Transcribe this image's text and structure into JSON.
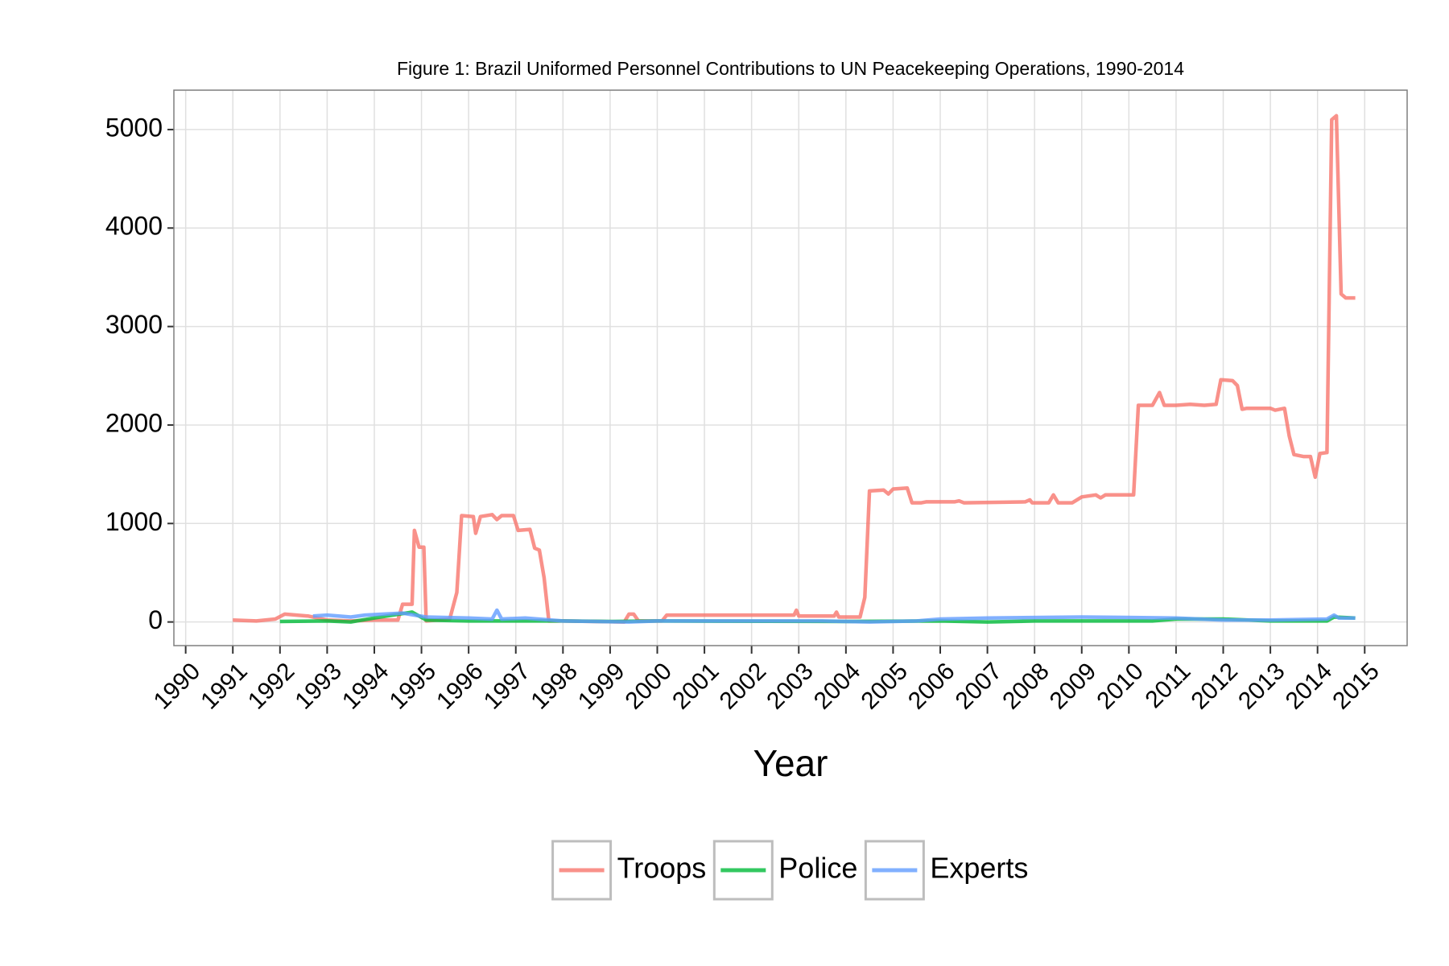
{
  "chart_data": {
    "type": "line",
    "title": "Figure 1: Brazil Uniformed Personnel Contributions to UN Peacekeeping Operations, 1990-2014",
    "x_label": "Year",
    "xlim": [
      1989.75,
      2015.9
    ],
    "xticks": [
      1990,
      1991,
      1992,
      1993,
      1994,
      1995,
      1996,
      1997,
      1998,
      1999,
      2000,
      2001,
      2002,
      2003,
      2004,
      2005,
      2006,
      2007,
      2008,
      2009,
      2010,
      2011,
      2012,
      2013,
      2014,
      2015
    ],
    "ylim": [
      -240,
      5400
    ],
    "yticks": [
      0,
      1000,
      2000,
      3000,
      4000,
      5000
    ],
    "grid": true,
    "legend": "bottom",
    "series": [
      {
        "name": "Troops",
        "color": "#f8766d",
        "x": [
          1991.0,
          1991.5,
          1991.9,
          1992.1,
          1992.6,
          1993.0,
          1993.5,
          1994.0,
          1994.5,
          1994.6,
          1994.8,
          1994.85,
          1994.95,
          1995.05,
          1995.1,
          1995.6,
          1995.75,
          1995.85,
          1996.1,
          1996.15,
          1996.25,
          1996.5,
          1996.6,
          1996.7,
          1996.95,
          1997.05,
          1997.3,
          1997.4,
          1997.5,
          1997.6,
          1997.7,
          1998.0,
          1999.3,
          1999.4,
          1999.5,
          1999.6,
          2000.1,
          2000.2,
          2002.9,
          2002.95,
          2003.0,
          2003.75,
          2003.8,
          2003.85,
          2004.3,
          2004.4,
          2004.5,
          2004.8,
          2004.9,
          2005.0,
          2005.3,
          2005.4,
          2005.6,
          2005.7,
          2006.3,
          2006.4,
          2006.5,
          2007.8,
          2007.9,
          2007.95,
          2008.3,
          2008.4,
          2008.5,
          2008.8,
          2009.0,
          2009.3,
          2009.4,
          2009.5,
          2010.1,
          2010.2,
          2010.5,
          2010.65,
          2010.75,
          2011.0,
          2011.3,
          2011.6,
          2011.85,
          2011.95,
          2012.2,
          2012.3,
          2012.4,
          2012.5,
          2013.0,
          2013.1,
          2013.3,
          2013.4,
          2013.5,
          2013.7,
          2013.85,
          2013.95,
          2014.05,
          2014.2,
          2014.3,
          2014.4,
          2014.5,
          2014.6,
          2014.8
        ],
        "values": [
          20,
          10,
          30,
          80,
          60,
          20,
          10,
          20,
          20,
          180,
          180,
          930,
          760,
          760,
          10,
          30,
          300,
          1080,
          1070,
          900,
          1070,
          1090,
          1040,
          1080,
          1080,
          930,
          940,
          750,
          730,
          450,
          10,
          10,
          0,
          80,
          80,
          10,
          10,
          70,
          70,
          120,
          60,
          60,
          100,
          50,
          50,
          250,
          1330,
          1340,
          1300,
          1350,
          1360,
          1210,
          1210,
          1220,
          1220,
          1230,
          1210,
          1220,
          1240,
          1210,
          1210,
          1290,
          1210,
          1210,
          1270,
          1290,
          1260,
          1290,
          1290,
          2200,
          2200,
          2330,
          2200,
          2200,
          2210,
          2200,
          2210,
          2460,
          2450,
          2400,
          2160,
          2170,
          2170,
          2150,
          2170,
          1890,
          1700,
          1680,
          1680,
          1470,
          1710,
          1720,
          5100,
          5140,
          3330,
          3290,
          3290
        ]
      },
      {
        "name": "Police",
        "color": "#00ba38",
        "x": [
          1992.0,
          1993.0,
          1993.5,
          1994.0,
          1994.8,
          1995.1,
          1996.0,
          1997.0,
          1998.0,
          1999.0,
          2000.0,
          2004.0,
          2006.0,
          2007.0,
          2008.0,
          2010.5,
          2011.0,
          2012.0,
          2013.0,
          2014.2,
          2014.35,
          2014.8
        ],
        "values": [
          5,
          10,
          0,
          40,
          100,
          20,
          10,
          10,
          10,
          5,
          10,
          5,
          10,
          0,
          10,
          10,
          30,
          30,
          10,
          10,
          50,
          40
        ]
      },
      {
        "name": "Experts",
        "color": "#619cff",
        "x": [
          1992.7,
          1993.0,
          1993.5,
          1993.8,
          1994.6,
          1995.1,
          1996.0,
          1996.5,
          1996.6,
          1996.7,
          1997.2,
          1998.0,
          1999.4,
          2000.0,
          2001.5,
          2003.5,
          2004.5,
          2005.5,
          2006.0,
          2007.0,
          2009.0,
          2011.0,
          2012.0,
          2013.0,
          2014.2,
          2014.35,
          2014.45,
          2014.8
        ],
        "values": [
          60,
          70,
          50,
          70,
          90,
          50,
          40,
          30,
          120,
          30,
          40,
          10,
          0,
          10,
          10,
          10,
          0,
          10,
          30,
          40,
          50,
          40,
          20,
          20,
          30,
          70,
          40,
          40
        ]
      }
    ]
  }
}
